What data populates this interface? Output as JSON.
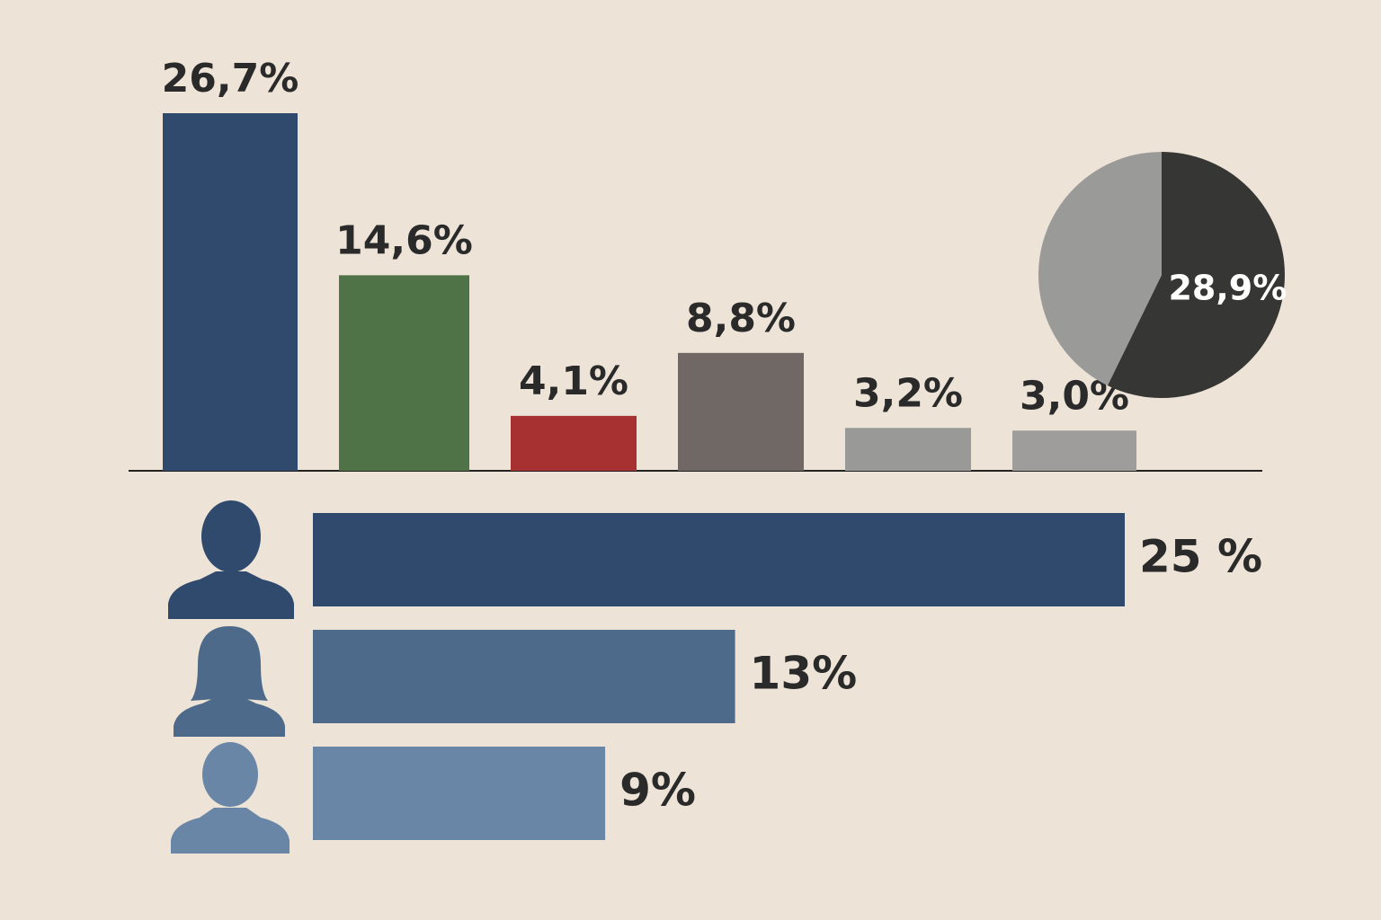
{
  "chart_data": [
    {
      "type": "bar",
      "values": [
        26.7,
        14.6,
        4.1,
        8.8,
        3.2,
        3.0
      ],
      "value_labels": [
        "26,7%",
        "14,6%",
        "4,1%",
        "8,8%",
        "3,2%",
        "3,0%"
      ],
      "colors": [
        "#2f4a6c",
        "#4f7347",
        "#a73131",
        "#6f6865",
        "#999997",
        "#9e9d9b"
      ]
    },
    {
      "type": "pie",
      "values": [
        28.9,
        21.6
      ],
      "value_labels": [
        "28,9%",
        null
      ],
      "colors": [
        "#363634",
        "#9a9a98"
      ]
    },
    {
      "type": "hbar",
      "values": [
        25,
        13,
        9
      ],
      "value_labels": [
        "25 %",
        "13%",
        "9%"
      ],
      "colors": [
        "#2f4a6c",
        "#4d6a8b",
        "#6a86a6"
      ]
    }
  ]
}
